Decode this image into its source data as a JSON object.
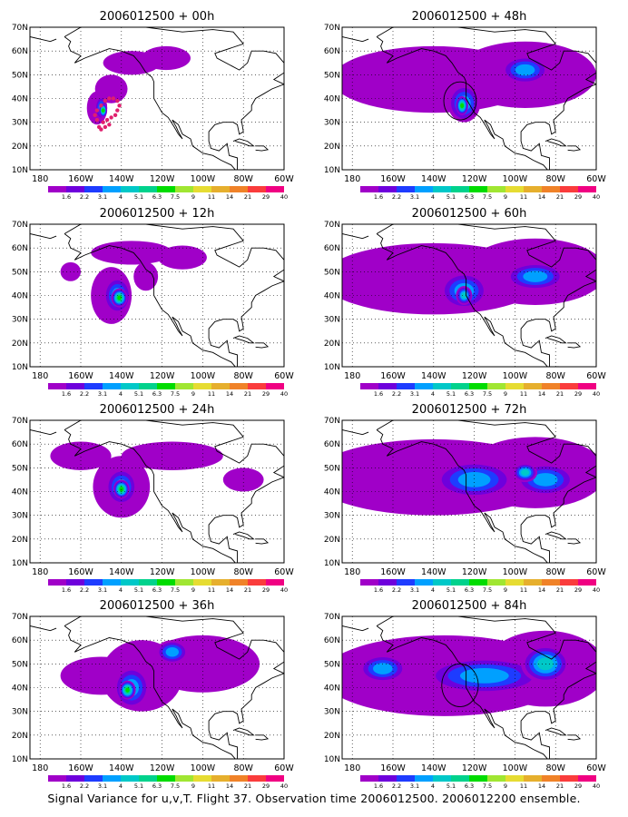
{
  "caption": "Signal Variance for u,v,T. Flight 37. Observation time 2006012500. 2006012200 ensemble.",
  "colorbar": {
    "labels": [
      "1.6",
      "2.2",
      "3.1",
      "4",
      "5.1",
      "6.3",
      "7.5",
      "9",
      "11",
      "14",
      "21",
      "29",
      "40"
    ],
    "colors": [
      "#a000c8",
      "#6e00dc",
      "#1e3cff",
      "#00a0ff",
      "#00c8c8",
      "#00d28c",
      "#00dc00",
      "#a0e632",
      "#e6dc32",
      "#e6af2d",
      "#f08228",
      "#fa3c3c",
      "#f00082"
    ]
  },
  "map": {
    "lon_labels": [
      "180",
      "160W",
      "140W",
      "120W",
      "100W",
      "80W",
      "60W"
    ],
    "lat_labels": [
      "10N",
      "20N",
      "30N",
      "40N",
      "50N",
      "60N",
      "70N"
    ],
    "lon_range": [
      -185,
      -60
    ],
    "lat_range": [
      10,
      70
    ],
    "grid": "dotted"
  },
  "chart_data": [
    {
      "type": "heatmap",
      "title": "2006012500 + 00h",
      "blobs": [
        {
          "lon": -152,
          "lat": 36,
          "rx": 5,
          "ry": 7,
          "level": 1.6
        },
        {
          "lon": -145,
          "lat": 44,
          "rx": 8,
          "ry": 6,
          "level": 1.6
        },
        {
          "lon": -135,
          "lat": 55,
          "rx": 14,
          "ry": 5,
          "level": 1.6
        },
        {
          "lon": -118,
          "lat": 57,
          "rx": 12,
          "ry": 5,
          "level": 1.6
        },
        {
          "lon": -150,
          "lat": 36,
          "rx": 3,
          "ry": 5,
          "level": 4
        },
        {
          "lon": -149,
          "lat": 35,
          "rx": 2,
          "ry": 3,
          "level": 7.5
        }
      ],
      "obs_points": [
        [
          -152,
          31
        ],
        [
          -153,
          33
        ],
        [
          -152,
          35
        ],
        [
          -150,
          37
        ],
        [
          -148,
          39
        ],
        [
          -146,
          40
        ],
        [
          -144,
          40
        ],
        [
          -142,
          39
        ],
        [
          -141,
          37
        ],
        [
          -142,
          35
        ],
        [
          -143,
          33
        ],
        [
          -145,
          32
        ],
        [
          -147,
          31
        ],
        [
          -149,
          30
        ],
        [
          -151,
          28
        ],
        [
          -150,
          27
        ],
        [
          -148,
          28
        ],
        [
          -146,
          29
        ]
      ]
    },
    {
      "type": "heatmap",
      "title": "2006012500 + 12h",
      "blobs": [
        {
          "lon": -165,
          "lat": 50,
          "rx": 5,
          "ry": 4,
          "level": 1.6
        },
        {
          "lon": -145,
          "lat": 40,
          "rx": 10,
          "ry": 12,
          "level": 1.6
        },
        {
          "lon": -135,
          "lat": 58,
          "rx": 20,
          "ry": 5,
          "level": 1.6
        },
        {
          "lon": -110,
          "lat": 56,
          "rx": 12,
          "ry": 5,
          "level": 1.6
        },
        {
          "lon": -128,
          "lat": 48,
          "rx": 6,
          "ry": 6,
          "level": 1.6
        },
        {
          "lon": -142,
          "lat": 40,
          "rx": 7,
          "ry": 8,
          "level": 4
        },
        {
          "lon": -141,
          "lat": 39,
          "rx": 4,
          "ry": 4,
          "level": 7.5
        }
      ]
    },
    {
      "type": "heatmap",
      "title": "2006012500 + 24h",
      "blobs": [
        {
          "lon": -160,
          "lat": 55,
          "rx": 15,
          "ry": 6,
          "level": 1.6
        },
        {
          "lon": -140,
          "lat": 42,
          "rx": 14,
          "ry": 13,
          "level": 1.6
        },
        {
          "lon": -115,
          "lat": 55,
          "rx": 25,
          "ry": 6,
          "level": 1.6
        },
        {
          "lon": -80,
          "lat": 45,
          "rx": 10,
          "ry": 5,
          "level": 1.6
        },
        {
          "lon": -140,
          "lat": 42,
          "rx": 8,
          "ry": 8,
          "level": 4
        },
        {
          "lon": -140,
          "lat": 41,
          "rx": 4,
          "ry": 4,
          "level": 7.5
        }
      ]
    },
    {
      "type": "heatmap",
      "title": "2006012500 + 36h",
      "blobs": [
        {
          "lon": -150,
          "lat": 45,
          "rx": 20,
          "ry": 8,
          "level": 1.6
        },
        {
          "lon": -130,
          "lat": 45,
          "rx": 20,
          "ry": 15,
          "level": 1.6
        },
        {
          "lon": -100,
          "lat": 50,
          "rx": 28,
          "ry": 12,
          "level": 1.6
        },
        {
          "lon": -135,
          "lat": 40,
          "rx": 9,
          "ry": 9,
          "level": 4
        },
        {
          "lon": -115,
          "lat": 55,
          "rx": 8,
          "ry": 5,
          "level": 4
        },
        {
          "lon": -137,
          "lat": 39,
          "rx": 4,
          "ry": 4,
          "level": 7.5
        }
      ]
    },
    {
      "type": "heatmap",
      "title": "2006012500 + 48h",
      "blobs": [
        {
          "lon": -140,
          "lat": 48,
          "rx": 50,
          "ry": 14,
          "level": 1.6
        },
        {
          "lon": -95,
          "lat": 50,
          "rx": 35,
          "ry": 14,
          "level": 1.6
        },
        {
          "lon": -125,
          "lat": 38,
          "rx": 8,
          "ry": 8,
          "level": 4
        },
        {
          "lon": -95,
          "lat": 52,
          "rx": 12,
          "ry": 6,
          "level": 4
        },
        {
          "lon": -126,
          "lat": 37,
          "rx": 3,
          "ry": 4,
          "level": 7.5
        }
      ],
      "circle": {
        "lon": -127,
        "lat": 39,
        "r": 8
      }
    },
    {
      "type": "heatmap",
      "title": "2006012500 + 60h",
      "blobs": [
        {
          "lon": -140,
          "lat": 47,
          "rx": 55,
          "ry": 15,
          "level": 1.6
        },
        {
          "lon": -90,
          "lat": 50,
          "rx": 35,
          "ry": 14,
          "level": 1.6
        },
        {
          "lon": -125,
          "lat": 42,
          "rx": 12,
          "ry": 8,
          "level": 4
        },
        {
          "lon": -90,
          "lat": 48,
          "rx": 15,
          "ry": 6,
          "level": 4
        },
        {
          "lon": -125,
          "lat": 40,
          "rx": 4,
          "ry": 4,
          "level": 5.1
        }
      ]
    },
    {
      "type": "heatmap",
      "title": "2006012500 + 72h",
      "blobs": [
        {
          "lon": -140,
          "lat": 46,
          "rx": 60,
          "ry": 16,
          "level": 1.6
        },
        {
          "lon": -90,
          "lat": 48,
          "rx": 35,
          "ry": 15,
          "level": 1.6
        },
        {
          "lon": -120,
          "lat": 45,
          "rx": 20,
          "ry": 8,
          "level": 4
        },
        {
          "lon": -85,
          "lat": 45,
          "rx": 15,
          "ry": 7,
          "level": 4
        },
        {
          "lon": -95,
          "lat": 48,
          "rx": 6,
          "ry": 4,
          "level": 5.1
        }
      ]
    },
    {
      "type": "heatmap",
      "title": "2006012500 + 84h",
      "blobs": [
        {
          "lon": -135,
          "lat": 45,
          "rx": 60,
          "ry": 17,
          "level": 1.6
        },
        {
          "lon": -85,
          "lat": 48,
          "rx": 30,
          "ry": 16,
          "level": 1.6
        },
        {
          "lon": -165,
          "lat": 48,
          "rx": 12,
          "ry": 6,
          "level": 4
        },
        {
          "lon": -115,
          "lat": 45,
          "rx": 30,
          "ry": 8,
          "level": 4
        },
        {
          "lon": -85,
          "lat": 50,
          "rx": 12,
          "ry": 8,
          "level": 5.1
        }
      ],
      "circle": {
        "lon": -127,
        "lat": 41,
        "r": 9
      }
    }
  ]
}
